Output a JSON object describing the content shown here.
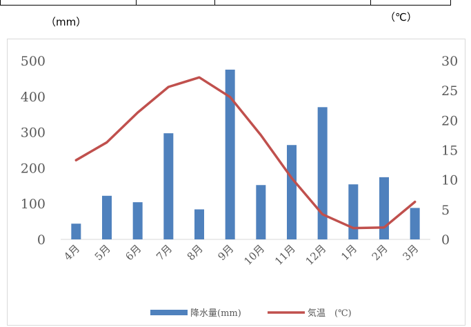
{
  "units": {
    "left": "（mm）",
    "right": "（℃）"
  },
  "chart_data": {
    "type": "bar+line",
    "categories": [
      "4月",
      "5月",
      "6月",
      "7月",
      "8月",
      "9月",
      "10月",
      "11月",
      "12月",
      "1月",
      "2月",
      "3月"
    ],
    "series": [
      {
        "name": "降水量(mm)",
        "type": "bar",
        "axis": "left",
        "values": [
          44,
          122,
          104,
          297,
          84,
          475,
          152,
          264,
          370,
          154,
          174,
          88
        ]
      },
      {
        "name": "気温　(℃)",
        "type": "line",
        "axis": "right",
        "values": [
          13.3,
          16.3,
          21.3,
          25.6,
          27.2,
          23.9,
          17.5,
          10.3,
          4.2,
          1.9,
          2.0,
          6.3
        ]
      }
    ],
    "y_left": {
      "min": 0,
      "max": 500,
      "ticks": [
        0,
        100,
        200,
        300,
        400,
        500
      ]
    },
    "y_right": {
      "min": 0,
      "max": 30,
      "ticks": [
        0,
        5,
        10,
        15,
        20,
        25,
        30
      ]
    },
    "grid": false,
    "legend": "bottom",
    "colors": {
      "bar": "#4f81bd",
      "line": "#c0504d",
      "axis": "#d9d9d9"
    }
  }
}
